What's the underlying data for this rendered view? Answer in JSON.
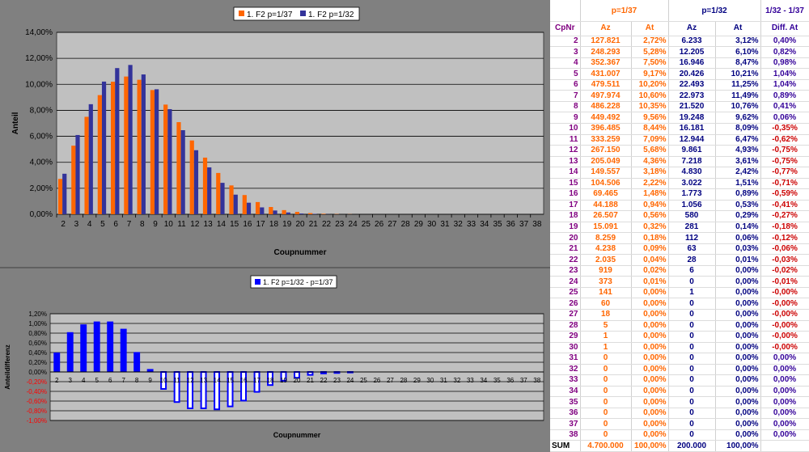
{
  "colors": {
    "p37": "#ff6600",
    "p32": "#33339a",
    "diff": "#0000ff",
    "plot_bg": "#c0c0c0",
    "chart_bg": "#808080",
    "neg_tick": "#ff0000"
  },
  "chart_data": [
    {
      "type": "bar",
      "categories": [
        "2",
        "3",
        "4",
        "5",
        "6",
        "7",
        "8",
        "9",
        "10",
        "11",
        "12",
        "13",
        "14",
        "15",
        "16",
        "17",
        "18",
        "19",
        "20",
        "21",
        "22",
        "23",
        "24",
        "25",
        "26",
        "27",
        "28",
        "29",
        "30",
        "31",
        "32",
        "33",
        "34",
        "35",
        "36",
        "37",
        "38"
      ],
      "series": [
        {
          "name": "1. F2 p=1/37",
          "values": [
            2.72,
            5.28,
            7.5,
            9.17,
            10.2,
            10.6,
            10.35,
            9.56,
            8.44,
            7.09,
            5.68,
            4.36,
            3.18,
            2.22,
            1.48,
            0.94,
            0.56,
            0.32,
            0.18,
            0.09,
            0.04,
            0.02,
            0.01,
            0,
            0,
            0,
            0,
            0,
            0,
            0,
            0,
            0,
            0,
            0,
            0,
            0,
            0
          ]
        },
        {
          "name": "1. F2 p=1/32",
          "values": [
            3.12,
            6.1,
            8.47,
            10.21,
            11.25,
            11.49,
            10.76,
            9.62,
            8.09,
            6.47,
            4.93,
            3.61,
            2.42,
            1.51,
            0.89,
            0.53,
            0.29,
            0.14,
            0.06,
            0.03,
            0.01,
            0,
            0,
            0,
            0,
            0,
            0,
            0,
            0,
            0,
            0,
            0,
            0,
            0,
            0,
            0,
            0
          ]
        }
      ],
      "xlabel": "Coupnummer",
      "ylabel": "Anteil",
      "ylim": [
        0,
        14
      ],
      "ytick_labels": [
        "0,00%",
        "2,00%",
        "4,00%",
        "6,00%",
        "8,00%",
        "10,00%",
        "12,00%",
        "14,00%"
      ],
      "grid": true,
      "legend": "top"
    },
    {
      "type": "bar",
      "categories": [
        "2",
        "3",
        "4",
        "5",
        "6",
        "7",
        "8",
        "9",
        "10",
        "11",
        "12",
        "13",
        "14",
        "15",
        "16",
        "17",
        "18",
        "19",
        "20",
        "21",
        "22",
        "23",
        "24",
        "25",
        "26",
        "27",
        "28",
        "29",
        "30",
        "31",
        "32",
        "33",
        "34",
        "35",
        "36",
        "37",
        "38"
      ],
      "series": [
        {
          "name": "1. F2 p=1/32 - p=1/37",
          "values": [
            0.4,
            0.82,
            0.98,
            1.04,
            1.04,
            0.89,
            0.41,
            0.06,
            -0.35,
            -0.62,
            -0.75,
            -0.75,
            -0.77,
            -0.71,
            -0.59,
            -0.41,
            -0.27,
            -0.18,
            -0.12,
            -0.06,
            -0.03,
            -0.02,
            -0.01,
            0,
            0,
            0,
            0,
            0,
            0,
            0,
            0,
            0,
            0,
            0,
            0,
            0,
            0
          ]
        }
      ],
      "xlabel": "Coupnummer",
      "ylabel": "Anteildifferenz",
      "ylim": [
        -1.0,
        1.2
      ],
      "ytick_labels": [
        "-1,00%",
        "-0,80%",
        "-0,60%",
        "-0,40%",
        "-0,20%",
        "0,00%",
        "0,20%",
        "0,40%",
        "0,60%",
        "0,80%",
        "1,00%",
        "1,20%"
      ],
      "grid": true,
      "legend": "top"
    }
  ],
  "table": {
    "group_headers": [
      "p=1/37",
      "p=1/32",
      "1/32 - 1/37"
    ],
    "col_headers": [
      "CpNr",
      "Az",
      "At",
      "Az",
      "At",
      "Diff. At"
    ],
    "rows": [
      [
        "2",
        "127.821",
        "2,72%",
        "6.233",
        "3,12%",
        "0,40%"
      ],
      [
        "3",
        "248.293",
        "5,28%",
        "12.205",
        "6,10%",
        "0,82%"
      ],
      [
        "4",
        "352.367",
        "7,50%",
        "16.946",
        "8,47%",
        "0,98%"
      ],
      [
        "5",
        "431.007",
        "9,17%",
        "20.426",
        "10,21%",
        "1,04%"
      ],
      [
        "6",
        "479.511",
        "10,20%",
        "22.493",
        "11,25%",
        "1,04%"
      ],
      [
        "7",
        "497.974",
        "10,60%",
        "22.973",
        "11,49%",
        "0,89%"
      ],
      [
        "8",
        "486.228",
        "10,35%",
        "21.520",
        "10,76%",
        "0,41%"
      ],
      [
        "9",
        "449.492",
        "9,56%",
        "19.248",
        "9,62%",
        "0,06%"
      ],
      [
        "10",
        "396.485",
        "8,44%",
        "16.181",
        "8,09%",
        "-0,35%"
      ],
      [
        "11",
        "333.259",
        "7,09%",
        "12.944",
        "6,47%",
        "-0,62%"
      ],
      [
        "12",
        "267.150",
        "5,68%",
        "9.861",
        "4,93%",
        "-0,75%"
      ],
      [
        "13",
        "205.049",
        "4,36%",
        "7.218",
        "3,61%",
        "-0,75%"
      ],
      [
        "14",
        "149.557",
        "3,18%",
        "4.830",
        "2,42%",
        "-0,77%"
      ],
      [
        "15",
        "104.506",
        "2,22%",
        "3.022",
        "1,51%",
        "-0,71%"
      ],
      [
        "16",
        "69.465",
        "1,48%",
        "1.773",
        "0,89%",
        "-0,59%"
      ],
      [
        "17",
        "44.188",
        "0,94%",
        "1.056",
        "0,53%",
        "-0,41%"
      ],
      [
        "18",
        "26.507",
        "0,56%",
        "580",
        "0,29%",
        "-0,27%"
      ],
      [
        "19",
        "15.091",
        "0,32%",
        "281",
        "0,14%",
        "-0,18%"
      ],
      [
        "20",
        "8.259",
        "0,18%",
        "112",
        "0,06%",
        "-0,12%"
      ],
      [
        "21",
        "4.238",
        "0,09%",
        "63",
        "0,03%",
        "-0,06%"
      ],
      [
        "22",
        "2.035",
        "0,04%",
        "28",
        "0,01%",
        "-0,03%"
      ],
      [
        "23",
        "919",
        "0,02%",
        "6",
        "0,00%",
        "-0,02%"
      ],
      [
        "24",
        "373",
        "0,01%",
        "0",
        "0,00%",
        "-0,01%"
      ],
      [
        "25",
        "141",
        "0,00%",
        "1",
        "0,00%",
        "-0,00%"
      ],
      [
        "26",
        "60",
        "0,00%",
        "0",
        "0,00%",
        "-0,00%"
      ],
      [
        "27",
        "18",
        "0,00%",
        "0",
        "0,00%",
        "-0,00%"
      ],
      [
        "28",
        "5",
        "0,00%",
        "0",
        "0,00%",
        "-0,00%"
      ],
      [
        "29",
        "1",
        "0,00%",
        "0",
        "0,00%",
        "-0,00%"
      ],
      [
        "30",
        "1",
        "0,00%",
        "0",
        "0,00%",
        "-0,00%"
      ],
      [
        "31",
        "0",
        "0,00%",
        "0",
        "0,00%",
        "0,00%"
      ],
      [
        "32",
        "0",
        "0,00%",
        "0",
        "0,00%",
        "0,00%"
      ],
      [
        "33",
        "0",
        "0,00%",
        "0",
        "0,00%",
        "0,00%"
      ],
      [
        "34",
        "0",
        "0,00%",
        "0",
        "0,00%",
        "0,00%"
      ],
      [
        "35",
        "0",
        "0,00%",
        "0",
        "0,00%",
        "0,00%"
      ],
      [
        "36",
        "0",
        "0,00%",
        "0",
        "0,00%",
        "0,00%"
      ],
      [
        "37",
        "0",
        "0,00%",
        "0",
        "0,00%",
        "0,00%"
      ],
      [
        "38",
        "0",
        "0,00%",
        "0",
        "0,00%",
        "0,00%"
      ]
    ],
    "sum_row": [
      "SUM",
      "4.700.000",
      "100,00%",
      "200.000",
      "100,00%",
      ""
    ]
  }
}
